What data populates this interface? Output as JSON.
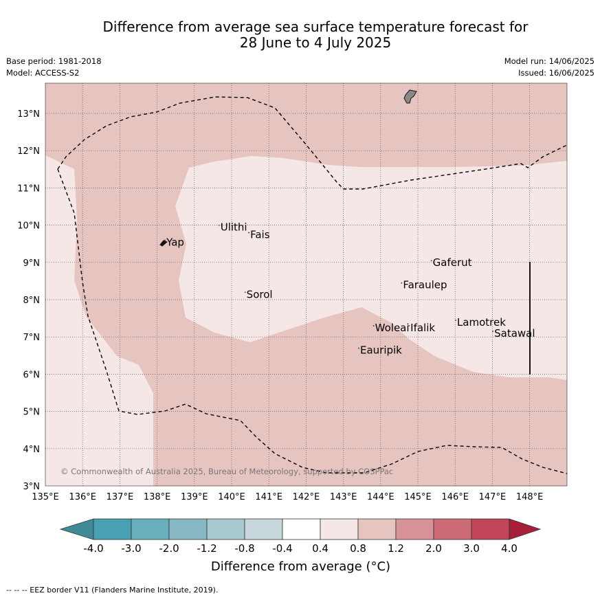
{
  "header": {
    "title_line1": "Difference from average sea surface temperature forecast for",
    "title_line2": "28 June to 4 July 2025",
    "base_period": "Base period: 1981-2018",
    "model": "Model: ACCESS-S2",
    "model_run": "Model run: 14/06/2025",
    "issued": "Issued: 16/06/2025"
  },
  "map": {
    "lon_range": [
      135,
      149
    ],
    "lat_range": [
      3,
      13.8
    ],
    "lon_ticks": [
      "135°E",
      "136°E",
      "137°E",
      "138°E",
      "139°E",
      "140°E",
      "141°E",
      "142°E",
      "143°E",
      "144°E",
      "145°E",
      "146°E",
      "147°E",
      "148°E"
    ],
    "lat_ticks": [
      "3°N",
      "4°N",
      "5°N",
      "6°N",
      "7°N",
      "8°N",
      "9°N",
      "10°N",
      "11°N",
      "12°N",
      "13°N"
    ],
    "copyright": "© Commonwealth of Australia 2025, Bureau of Meteorology, supported by COSPPac",
    "places": [
      {
        "name": "Yap",
        "lon": 138.25,
        "lat": 9.45
      },
      {
        "name": "Ulithi",
        "lon": 139.7,
        "lat": 9.85
      },
      {
        "name": "Fais",
        "lon": 140.5,
        "lat": 9.65
      },
      {
        "name": "Gaferut",
        "lon": 145.4,
        "lat": 8.9
      },
      {
        "name": "Faraulep",
        "lon": 144.6,
        "lat": 8.3
      },
      {
        "name": "Sorol",
        "lon": 140.4,
        "lat": 8.05
      },
      {
        "name": "Lamotrek",
        "lon": 146.05,
        "lat": 7.3
      },
      {
        "name": "Satawal",
        "lon": 147.05,
        "lat": 7.0
      },
      {
        "name": "Woleai",
        "lon": 143.85,
        "lat": 7.15
      },
      {
        "name": "Ifalik",
        "lon": 144.8,
        "lat": 7.15
      },
      {
        "name": "Eauripik",
        "lon": 143.45,
        "lat": 6.55
      }
    ],
    "colors": {
      "anomaly_0.4_0.8": "#f5e7e6",
      "anomaly_0.8_1.2": "#e6c5c1",
      "grid": "#555555",
      "land": "#888888"
    }
  },
  "colorbar": {
    "labels": [
      "-4.0",
      "-3.0",
      "-2.0",
      "-1.2",
      "-0.8",
      "-0.4",
      "0.4",
      "0.8",
      "1.2",
      "2.0",
      "3.0",
      "4.0"
    ],
    "colors": [
      "#47a1b2",
      "#69aebd",
      "#88b8c4",
      "#a8c8cf",
      "#c7d8dc",
      "#ffffff",
      "#f5e7e6",
      "#e6c5c1",
      "#d7929a",
      "#cc6b75",
      "#c04556"
    ],
    "under_color": "#3e8a96",
    "over_color": "#a72038",
    "title": "Difference from average (°C)"
  },
  "footer": {
    "legend": "--  --  -- EEZ border V11 (Flanders Marine Institute, 2019)."
  }
}
